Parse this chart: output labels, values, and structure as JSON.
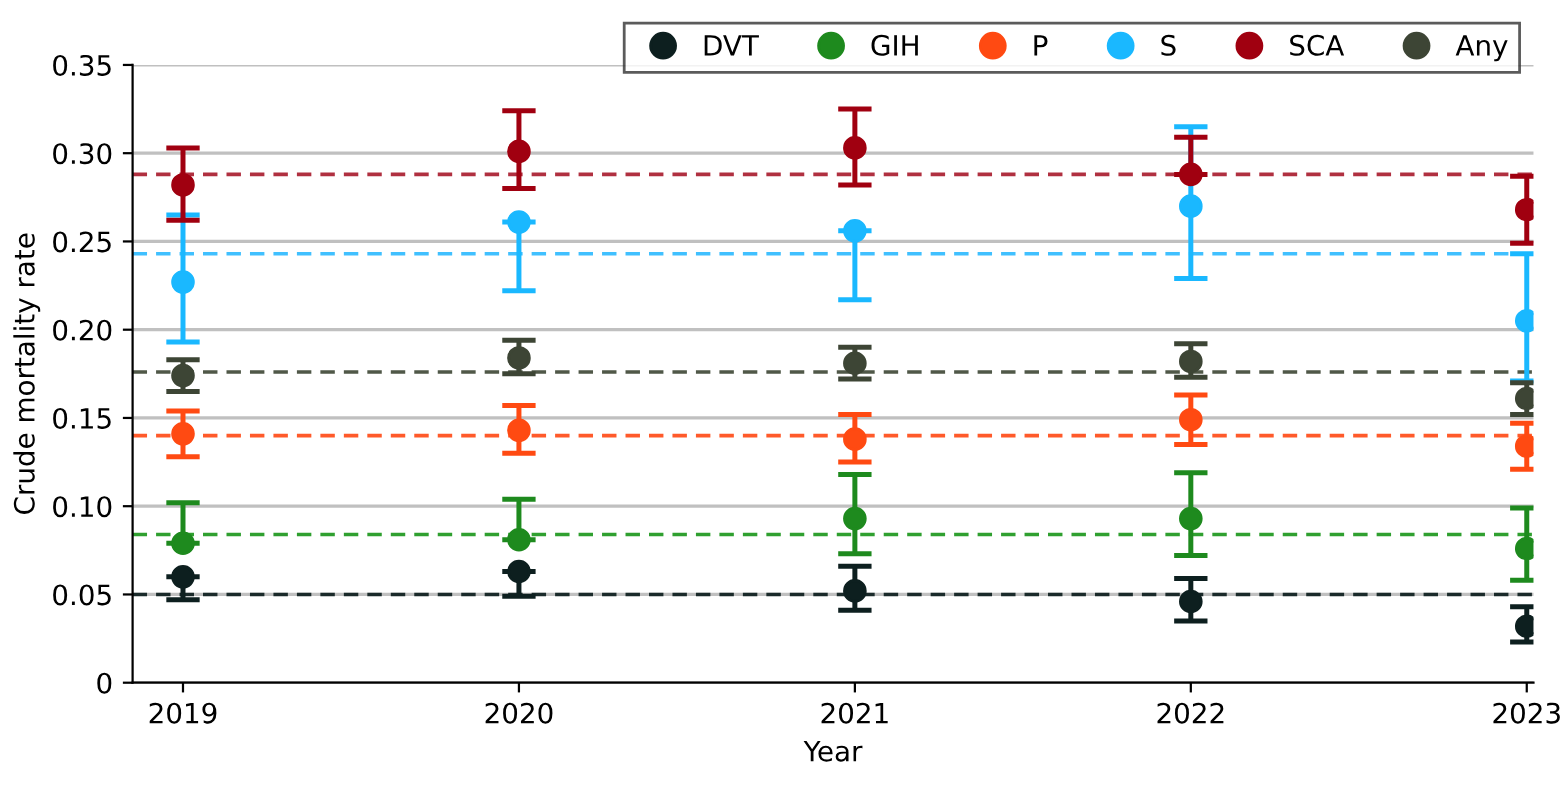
{
  "chart_data": {
    "type": "scatter",
    "xlabel": "Year",
    "ylabel": "Crude mortality rate",
    "categories": [
      "2019",
      "2020",
      "2021",
      "2022",
      "2023"
    ],
    "series": [
      {
        "name": "DVT",
        "color": "#0d1f1f",
        "values": [
          0.06,
          0.063,
          0.052,
          0.046,
          0.032
        ],
        "errors": [
          [
            0.047,
            0.06
          ],
          [
            0.049,
            0.063
          ],
          [
            0.041,
            0.066
          ],
          [
            0.035,
            0.059
          ],
          [
            0.023,
            0.043
          ]
        ]
      },
      {
        "name": "GIH",
        "color": "#1e8a1e",
        "values": [
          0.079,
          0.081,
          0.093,
          0.093,
          0.076
        ],
        "errors": [
          [
            0.079,
            0.102
          ],
          [
            0.081,
            0.104
          ],
          [
            0.073,
            0.118
          ],
          [
            0.072,
            0.119
          ],
          [
            0.058,
            0.099
          ]
        ]
      },
      {
        "name": "P",
        "color": "#ff4a12",
        "values": [
          0.141,
          0.143,
          0.138,
          0.149,
          0.134
        ],
        "errors": [
          [
            0.128,
            0.154
          ],
          [
            0.13,
            0.157
          ],
          [
            0.125,
            0.152
          ],
          [
            0.135,
            0.163
          ],
          [
            0.121,
            0.147
          ]
        ]
      },
      {
        "name": "S",
        "color": "#1ab8ff",
        "values": [
          0.227,
          0.261,
          0.256,
          0.27,
          0.205
        ],
        "errors": [
          [
            0.193,
            0.265
          ],
          [
            0.222,
            0.261
          ],
          [
            0.217,
            0.256
          ],
          [
            0.229,
            0.315
          ],
          [
            0.171,
            0.243
          ]
        ]
      },
      {
        "name": "SCA",
        "color": "#a00010",
        "values": [
          0.282,
          0.301,
          0.303,
          0.288,
          0.268
        ],
        "errors": [
          [
            0.262,
            0.303
          ],
          [
            0.28,
            0.324
          ],
          [
            0.282,
            0.325
          ],
          [
            0.288,
            0.309
          ],
          [
            0.249,
            0.287
          ]
        ]
      },
      {
        "name": "Any",
        "color": "#3d4535",
        "values": [
          0.174,
          0.184,
          0.181,
          0.182,
          0.161
        ],
        "errors": [
          [
            0.165,
            0.183
          ],
          [
            0.175,
            0.194
          ],
          [
            0.172,
            0.19
          ],
          [
            0.173,
            0.192
          ],
          [
            0.152,
            0.17
          ]
        ]
      }
    ],
    "ref_lines": [
      {
        "axis": "y",
        "value": 0.288,
        "color": "#b03040",
        "line_style": "dashed"
      },
      {
        "axis": "y",
        "value": 0.243,
        "color": "#40c0ff",
        "line_style": "dashed"
      },
      {
        "axis": "y",
        "value": 0.176,
        "color": "#505848",
        "line_style": "dashed"
      },
      {
        "axis": "y",
        "value": 0.14,
        "color": "#ff5a2a",
        "line_style": "dashed"
      },
      {
        "axis": "y",
        "value": 0.084,
        "color": "#30a030",
        "line_style": "dashed"
      },
      {
        "axis": "y",
        "value": 0.05,
        "color": "#1a2a2a",
        "line_style": "dashed"
      }
    ],
    "ylim": [
      0,
      0.35
    ],
    "yticks": [
      {
        "value": 0,
        "label": "0"
      },
      {
        "value": 0.05,
        "label": "0.05"
      },
      {
        "value": 0.1,
        "label": "0.10"
      },
      {
        "value": 0.15,
        "label": "0.15"
      },
      {
        "value": 0.2,
        "label": "0.20"
      },
      {
        "value": 0.25,
        "label": "0.25"
      },
      {
        "value": 0.3,
        "label": "0.30"
      },
      {
        "value": 0.35,
        "label": "0.35"
      }
    ],
    "grid": "y",
    "legend": "top right",
    "marker": "circle"
  }
}
